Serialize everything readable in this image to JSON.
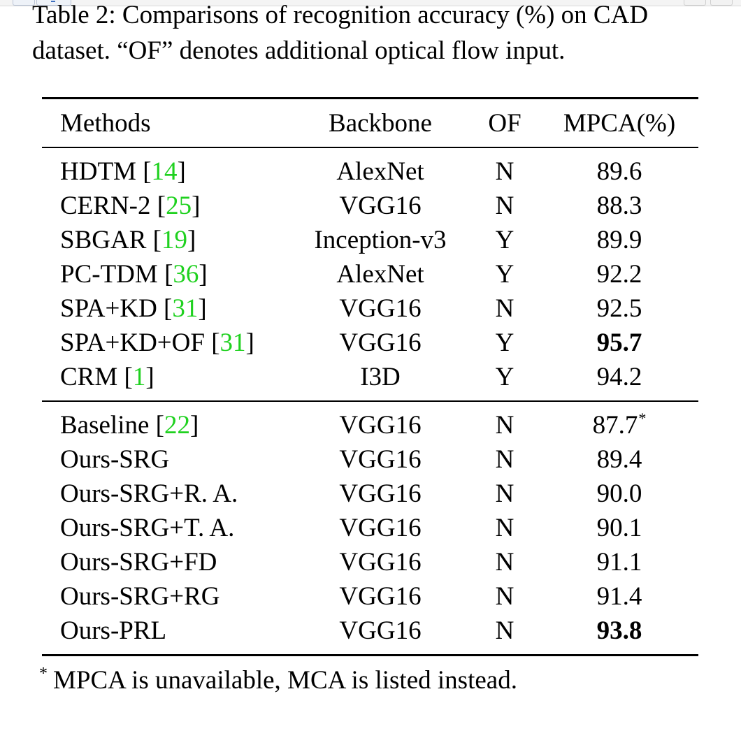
{
  "caption": {
    "line1": "Table 2: Comparisons of recognition accuracy (%) on CAD",
    "line2": "dataset. “OF” denotes additional optical flow input."
  },
  "table": {
    "headers": {
      "method": "Methods",
      "backbone": "Backbone",
      "of": "OF",
      "mpca": "MPCA(%)"
    },
    "group1": [
      {
        "method": "HDTM",
        "ref": "14",
        "backbone": "AlexNet",
        "of": "N",
        "mpca": "89.6"
      },
      {
        "method": "CERN-2",
        "ref": "25",
        "backbone": "VGG16",
        "of": "N",
        "mpca": "88.3"
      },
      {
        "method": "SBGAR",
        "ref": "19",
        "backbone": "Inception-v3",
        "of": "Y",
        "mpca": "89.9"
      },
      {
        "method": "PC-TDM",
        "ref": "36",
        "backbone": "AlexNet",
        "of": "Y",
        "mpca": "92.2"
      },
      {
        "method": "SPA+KD",
        "ref": "31",
        "backbone": "VGG16",
        "of": "N",
        "mpca": "92.5"
      },
      {
        "method": "SPA+KD+OF",
        "ref": "31",
        "backbone": "VGG16",
        "of": "Y",
        "mpca": "95.7"
      },
      {
        "method": "CRM",
        "ref": "1",
        "backbone": "I3D",
        "of": "Y",
        "mpca": "94.2"
      }
    ],
    "group2": [
      {
        "method": "Baseline",
        "ref": "22",
        "backbone": "VGG16",
        "of": "N",
        "mpca": "87.7",
        "mark": "*"
      },
      {
        "method": "Ours-SRG",
        "ref": "",
        "backbone": "VGG16",
        "of": "N",
        "mpca": "89.4"
      },
      {
        "method": "Ours-SRG+R. A.",
        "ref": "",
        "backbone": "VGG16",
        "of": "N",
        "mpca": "90.0"
      },
      {
        "method": "Ours-SRG+T. A.",
        "ref": "",
        "backbone": "VGG16",
        "of": "N",
        "mpca": "90.1"
      },
      {
        "method": "Ours-SRG+FD",
        "ref": "",
        "backbone": "VGG16",
        "of": "N",
        "mpca": "91.1"
      },
      {
        "method": "Ours-SRG+RG",
        "ref": "",
        "backbone": "VGG16",
        "of": "N",
        "mpca": "91.4"
      },
      {
        "method": "Ours-PRL",
        "ref": "",
        "backbone": "VGG16",
        "of": "N",
        "mpca": "93.8"
      }
    ]
  },
  "footnote": {
    "mark": "*",
    "text": "MPCA is unavailable, MCA is listed instead."
  },
  "colors": {
    "citation": "#1fd11f",
    "text": "#000000"
  }
}
